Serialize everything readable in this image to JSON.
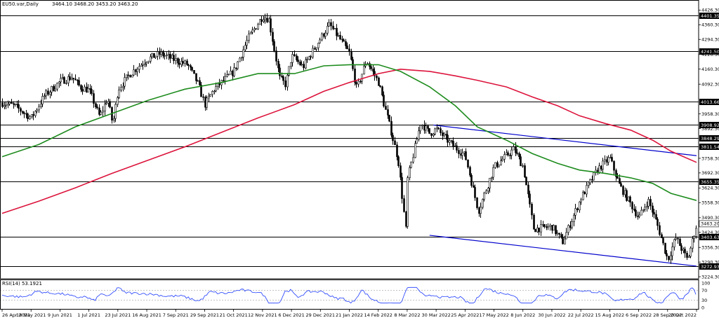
{
  "header": {
    "symbol": "EU50.var,Daily",
    "ohlc": "3464.10 3468.20 3453.20 3463.20"
  },
  "rsi": {
    "label": "RSI(14) 53.1921",
    "level_labels": [
      "100",
      "70",
      "30",
      "0"
    ]
  },
  "colors": {
    "candle_up": "#000000",
    "candle_down": "#000000",
    "ma_fast": "#1e8c1e",
    "ma_slow": "#dc143c",
    "trendline": "#0000cc",
    "level": "#000000",
    "rsi_line": "#1e3cff",
    "badge_bg": "#000000",
    "badge_text": "#ffffff"
  },
  "chart_data": {
    "type": "candlestick",
    "symbol": "EU50.var",
    "timeframe": "Daily",
    "last_ohlc": {
      "open": 3464.1,
      "high": 3468.2,
      "low": 3453.2,
      "close": 3463.2
    },
    "current_price": 3463.2,
    "y_ticks": [
      "4426.30",
      "4360.30",
      "4294.30",
      "4226.30",
      "4160.30",
      "4092.30",
      "3958.30",
      "3892.30",
      "3758.30",
      "3692.30",
      "3624.30",
      "3558.30",
      "3490.30",
      "3424.30",
      "3356.30",
      "3290.30",
      "3224.30"
    ],
    "ylim": [
      3215,
      4434
    ],
    "x_ticks": [
      "26 Apr 2021",
      "18 May 2021",
      "9 Jun 2021",
      "1 Jul 2021",
      "23 Jul 2021",
      "16 Aug 2021",
      "7 Sep 2021",
      "29 Sep 2021",
      "21 Oct 2021",
      "12 Nov 2021",
      "6 Dec 2021",
      "29 Dec 2021",
      "21 Jan 2022",
      "14 Feb 2022",
      "8 Mar 2022",
      "30 Mar 2022",
      "25 Apr 2022",
      "17 May 2022",
      "8 Jun 2022",
      "30 Jun 2022",
      "22 Jul 2022",
      "15 Aug 2022",
      "6 Sep 2022",
      "28 Sep 2022",
      "20 Oct 2022"
    ],
    "horizontal_levels": [
      "4401.35",
      "4241.50",
      "4013.66",
      "3908.92",
      "3848.29",
      "3811.54",
      "3655.35",
      "3403.63",
      "3272.93"
    ],
    "trendlines": [
      {
        "from": {
          "x": "28 Mar 2022",
          "y": 3908
        },
        "to": {
          "x": "20 Oct 2022",
          "y": 3770
        }
      },
      {
        "from": {
          "x": "25 Mar 2022",
          "y": 3411
        },
        "to": {
          "x": "20 Oct 2022",
          "y": 3272
        }
      }
    ],
    "series_path_points": [
      [
        "26 Apr 2021",
        4008
      ],
      [
        "5 May 2021",
        3995
      ],
      [
        "18 May 2021",
        3940
      ],
      [
        "28 May 2021",
        4040
      ],
      [
        "9 Jun 2021",
        4105
      ],
      [
        "18 Jun 2021",
        4125
      ],
      [
        "24 Jun 2021",
        4080
      ],
      [
        "1 Jul 2021",
        4065
      ],
      [
        "9 Jul 2021",
        3945
      ],
      [
        "15 Jul 2021",
        4030
      ],
      [
        "19 Jul 2021",
        3910
      ],
      [
        "23 Jul 2021",
        4070
      ],
      [
        "2 Aug 2021",
        4140
      ],
      [
        "16 Aug 2021",
        4205
      ],
      [
        "26 Aug 2021",
        4230
      ],
      [
        "7 Sep 2021",
        4200
      ],
      [
        "16 Sep 2021",
        4180
      ],
      [
        "24 Sep 2021",
        4090
      ],
      [
        "29 Sep 2021",
        4000
      ],
      [
        "6 Oct 2021",
        4070
      ],
      [
        "21 Oct 2021",
        4150
      ],
      [
        "1 Nov 2021",
        4300
      ],
      [
        "12 Nov 2021",
        4400
      ],
      [
        "17 Nov 2021",
        4385
      ],
      [
        "26 Nov 2021",
        4120
      ],
      [
        "1 Dec 2021",
        4090
      ],
      [
        "6 Dec 2021",
        4220
      ],
      [
        "15 Dec 2021",
        4170
      ],
      [
        "29 Dec 2021",
        4300
      ],
      [
        "5 Jan 2022",
        4360
      ],
      [
        "14 Jan 2022",
        4290
      ],
      [
        "21 Jan 2022",
        4230
      ],
      [
        "27 Jan 2022",
        4070
      ],
      [
        "4 Feb 2022",
        4200
      ],
      [
        "11 Feb 2022",
        4130
      ],
      [
        "14 Feb 2022",
        4100
      ],
      [
        "24 Feb 2022",
        3870
      ],
      [
        "1 Mar 2022",
        3750
      ],
      [
        "7 Mar 2022",
        3425
      ],
      [
        "8 Mar 2022",
        3660
      ],
      [
        "18 Mar 2022",
        3920
      ],
      [
        "25 Mar 2022",
        3870
      ],
      [
        "30 Mar 2022",
        3890
      ],
      [
        "13 Apr 2022",
        3820
      ],
      [
        "25 Apr 2022",
        3770
      ],
      [
        "5 May 2022",
        3520
      ],
      [
        "17 May 2022",
        3720
      ],
      [
        "1 Jun 2022",
        3800
      ],
      [
        "8 Jun 2022",
        3720
      ],
      [
        "16 Jun 2022",
        3440
      ],
      [
        "30 Jun 2022",
        3450
      ],
      [
        "8 Jul 2022",
        3380
      ],
      [
        "22 Jul 2022",
        3580
      ],
      [
        "5 Aug 2022",
        3710
      ],
      [
        "15 Aug 2022",
        3760
      ],
      [
        "22 Aug 2022",
        3640
      ],
      [
        "6 Sep 2022",
        3490
      ],
      [
        "13 Sep 2022",
        3570
      ],
      [
        "20 Sep 2022",
        3460
      ],
      [
        "28 Sep 2022",
        3300
      ],
      [
        "4 Oct 2022",
        3400
      ],
      [
        "13 Oct 2022",
        3300
      ],
      [
        "20 Oct 2022",
        3463
      ]
    ],
    "moving_average_fast": [
      [
        0,
        3765
      ],
      [
        10,
        3820
      ],
      [
        20,
        3900
      ],
      [
        30,
        3960
      ],
      [
        40,
        4020
      ],
      [
        50,
        4070
      ],
      [
        60,
        4100
      ],
      [
        70,
        4140
      ],
      [
        80,
        4140
      ],
      [
        88,
        4175
      ],
      [
        95,
        4180
      ],
      [
        103,
        4180
      ],
      [
        109,
        4150
      ],
      [
        117,
        4080
      ],
      [
        124,
        3995
      ],
      [
        130,
        3900
      ],
      [
        138,
        3840
      ],
      [
        145,
        3780
      ],
      [
        152,
        3735
      ],
      [
        158,
        3705
      ],
      [
        165,
        3690
      ],
      [
        172,
        3670
      ],
      [
        178,
        3645
      ],
      [
        183,
        3600
      ],
      [
        190,
        3568
      ]
    ],
    "moving_average_slow": [
      [
        0,
        3510
      ],
      [
        10,
        3565
      ],
      [
        20,
        3625
      ],
      [
        30,
        3690
      ],
      [
        40,
        3750
      ],
      [
        50,
        3810
      ],
      [
        60,
        3875
      ],
      [
        70,
        3940
      ],
      [
        80,
        4000
      ],
      [
        88,
        4060
      ],
      [
        95,
        4100
      ],
      [
        103,
        4140
      ],
      [
        109,
        4160
      ],
      [
        117,
        4150
      ],
      [
        124,
        4130
      ],
      [
        130,
        4110
      ],
      [
        138,
        4080
      ],
      [
        145,
        4035
      ],
      [
        152,
        3995
      ],
      [
        158,
        3950
      ],
      [
        165,
        3915
      ],
      [
        172,
        3885
      ],
      [
        178,
        3840
      ],
      [
        183,
        3790
      ],
      [
        190,
        3740
      ]
    ],
    "rsi": {
      "period": 14,
      "value": 53.1921,
      "levels": [
        70,
        30
      ],
      "ylim": [
        0,
        100
      ]
    }
  }
}
